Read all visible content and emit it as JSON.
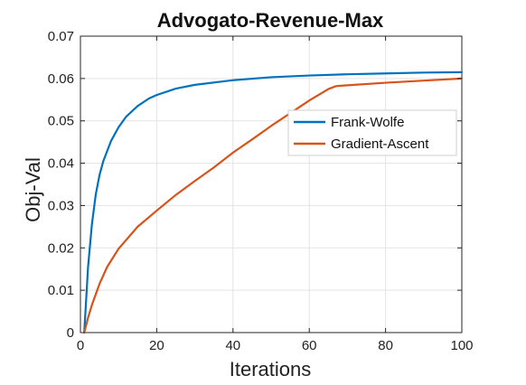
{
  "chart_data": {
    "type": "line",
    "title": "Advogato-Revenue-Max",
    "xlabel": "Iterations",
    "ylabel": "Obj-Val",
    "xlim": [
      0,
      100
    ],
    "ylim": [
      0,
      0.07
    ],
    "xticks": [
      0,
      20,
      40,
      60,
      80,
      100
    ],
    "xtick_labels": [
      "0",
      "20",
      "40",
      "60",
      "80",
      "100"
    ],
    "yticks": [
      0,
      0.01,
      0.02,
      0.03,
      0.04,
      0.05,
      0.06,
      0.07
    ],
    "ytick_labels": [
      "0",
      "0.01",
      "0.02",
      "0.03",
      "0.04",
      "0.05",
      "0.06",
      "0.07"
    ],
    "grid": true,
    "legend_position": "right",
    "series": [
      {
        "name": "Frank-Wolfe",
        "color": "#0072BD",
        "x": [
          1,
          2,
          3,
          4,
          5,
          6,
          8,
          10,
          12,
          15,
          18,
          20,
          25,
          30,
          40,
          50,
          60,
          70,
          80,
          90,
          100
        ],
        "y": [
          0.0,
          0.0155,
          0.0255,
          0.0325,
          0.0372,
          0.0405,
          0.0452,
          0.0485,
          0.051,
          0.0535,
          0.0553,
          0.0561,
          0.0576,
          0.0585,
          0.0596,
          0.0603,
          0.0607,
          0.061,
          0.0612,
          0.0614,
          0.0615
        ]
      },
      {
        "name": "Gradient-Ascent",
        "color": "#D95319",
        "x": [
          1,
          2,
          3,
          5,
          7,
          10,
          15,
          20,
          25,
          30,
          35,
          40,
          45,
          50,
          55,
          60,
          65,
          67,
          70,
          80,
          90,
          100
        ],
        "y": [
          0.0,
          0.0035,
          0.0065,
          0.0115,
          0.0155,
          0.0198,
          0.025,
          0.0288,
          0.0325,
          0.0358,
          0.039,
          0.0425,
          0.0456,
          0.0488,
          0.0518,
          0.0548,
          0.0575,
          0.0582,
          0.0584,
          0.059,
          0.0595,
          0.06
        ]
      }
    ]
  }
}
